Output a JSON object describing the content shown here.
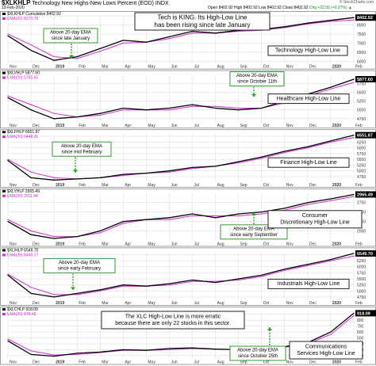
{
  "header": {
    "symbol": "$XLKHLP",
    "description": "Technology New Highs-New Lows Percent (EOD) INDX",
    "date": "13-Feb-2020",
    "source": "© StockCharts.com",
    "ohlc": "Open 8402.92  High 8402.92  Low 8402.92  Close 8402.92",
    "change": "Chg +22.56 (+0.27%) ▲"
  },
  "colors": {
    "price": "#000000",
    "ema": "#d02cd6",
    "annotation_arrow": "#2e9e2e",
    "annotation_border": "#2e9e2e",
    "grid": "#d8d8d8",
    "background": "#ffffff",
    "current_value_tag": "#000000"
  },
  "chart_data": [
    {
      "type": "line",
      "x": [
        "Nov 2018",
        "Dec 2018",
        "Jan 2019",
        "Feb 2019",
        "Mar 2019",
        "Apr 2019",
        "May 2019",
        "Jun 2019",
        "Jul 2019",
        "Aug 2019",
        "Sep 2019",
        "Oct 2019",
        "Nov 2019",
        "Dec 2019",
        "Jan 2020",
        "Feb 2020"
      ],
      "series": [
        {
          "name": "$XLKHLP Cumulative 8402.92",
          "values": [
            7400,
            6600,
            6050,
            6250,
            6700,
            7150,
            7050,
            7350,
            7650,
            7550,
            7700,
            7750,
            7900,
            8100,
            8250,
            8403
          ]
        },
        {
          "name": "EMA(20) 8270.78",
          "values": [
            7500,
            6900,
            6250,
            6150,
            6550,
            7000,
            7050,
            7250,
            7550,
            7550,
            7650,
            7700,
            7850,
            8050,
            8200,
            8271
          ]
        }
      ],
      "ylim": [
        5900,
        8500
      ],
      "yticks": [
        6000,
        6500,
        7000,
        7500,
        8000,
        8500
      ],
      "current_tag": "8402.92",
      "label": "Technology High-Low Line",
      "annotations": [
        {
          "text": "Tech is KING. Its High-Low Line has been rising since late January",
          "type": "note"
        },
        {
          "text": "Above 20-day EMA since late January",
          "type": "arrow-note"
        }
      ]
    },
    {
      "type": "line",
      "x": [
        "Nov 2018",
        "Dec 2018",
        "Jan 2019",
        "Feb 2019",
        "Mar 2019",
        "Apr 2019",
        "May 2019",
        "Jun 2019",
        "Jul 2019",
        "Aug 2019",
        "Sep 2019",
        "Oct 2019",
        "Nov 2019",
        "Dec 2019",
        "Jan 2020",
        "Feb 2020"
      ],
      "series": [
        {
          "name": "$XLVHLP 5877.60",
          "values": [
            5350,
            5000,
            4750,
            4800,
            4900,
            5050,
            5000,
            5050,
            5150,
            5050,
            5000,
            5050,
            5250,
            5450,
            5650,
            5878
          ]
        },
        {
          "name": "EMA(20) 5785.65",
          "values": [
            5400,
            5150,
            4900,
            4800,
            4850,
            5000,
            5000,
            5000,
            5100,
            5100,
            5050,
            5050,
            5200,
            5400,
            5600,
            5786
          ]
        }
      ],
      "ylim": [
        4650,
        6000
      ],
      "yticks": [
        4750,
        5000,
        5250,
        5500,
        5750
      ],
      "current_tag": "5877.60",
      "label": "Healthcare High-Low Line",
      "annotations": [
        {
          "text": "Above 20-day EMA since October 11th",
          "type": "arrow-note"
        }
      ]
    },
    {
      "type": "line",
      "x": [
        "Nov 2018",
        "Dec 2018",
        "Jan 2019",
        "Feb 2019",
        "Mar 2019",
        "Apr 2019",
        "May 2019",
        "Jun 2019",
        "Jul 2019",
        "Aug 2019",
        "Sep 2019",
        "Oct 2019",
        "Nov 2019",
        "Dec 2019",
        "Jan 2020",
        "Feb 2020"
      ],
      "series": [
        {
          "name": "$XLFHLP 6551.87",
          "values": [
            5450,
            4700,
            4600,
            4650,
            4700,
            4850,
            4900,
            5000,
            5150,
            5200,
            5400,
            5600,
            5850,
            6050,
            6300,
            6552
          ]
        },
        {
          "name": "EMA(20) 6448.31",
          "values": [
            5500,
            4950,
            4700,
            4650,
            4700,
            4800,
            4900,
            4950,
            5100,
            5200,
            5350,
            5550,
            5800,
            6000,
            6250,
            6448
          ]
        }
      ],
      "ylim": [
        4550,
        6600
      ],
      "yticks": [
        4750,
        5000,
        5250,
        5500,
        5750,
        6000,
        6250,
        6500
      ],
      "current_tag": "6551.87",
      "label": "Finance High-Low Line",
      "annotations": [
        {
          "text": "Above 20-day EMA since mid February",
          "type": "arrow-note"
        }
      ]
    },
    {
      "type": "line",
      "x": [
        "Nov 2018",
        "Dec 2018",
        "Jan 2019",
        "Feb 2019",
        "Mar 2019",
        "Apr 2019",
        "May 2019",
        "Jun 2019",
        "Jul 2019",
        "Aug 2019",
        "Sep 2019",
        "Oct 2019",
        "Nov 2019",
        "Dec 2019",
        "Jan 2020",
        "Feb 2020"
      ],
      "series": [
        {
          "name": "$XLYHLP 2965.49",
          "values": [
            2250,
            1900,
            1800,
            1850,
            2000,
            2250,
            2300,
            2350,
            2450,
            2350,
            2450,
            2500,
            2600,
            2750,
            2850,
            2965
          ]
        },
        {
          "name": "EMA(20) 2911.44",
          "values": [
            2300,
            2000,
            1850,
            1850,
            1950,
            2200,
            2300,
            2300,
            2400,
            2400,
            2400,
            2450,
            2550,
            2700,
            2800,
            2911
          ]
        }
      ],
      "ylim": [
        1750,
        3000
      ],
      "yticks": [
        2000,
        2250,
        2500,
        2750
      ],
      "current_tag": "2965.49",
      "label": "Consumer Discretionary High-Low Line",
      "annotations": [
        {
          "text": "Above 20-day EMA since early September",
          "type": "arrow-note"
        }
      ]
    },
    {
      "type": "line",
      "x": [
        "Nov 2018",
        "Dec 2018",
        "Jan 2019",
        "Feb 2019",
        "Mar 2019",
        "Apr 2019",
        "May 2019",
        "Jun 2019",
        "Jul 2019",
        "Aug 2019",
        "Sep 2019",
        "Oct 2019",
        "Nov 2019",
        "Dec 2019",
        "Jan 2020",
        "Feb 2020"
      ],
      "series": [
        {
          "name": "$XLIHLP 6549.70",
          "values": [
            5650,
            4900,
            4750,
            4900,
            5050,
            5250,
            5200,
            5300,
            5450,
            5350,
            5500,
            5650,
            5900,
            6100,
            6300,
            6550
          ]
        },
        {
          "name": "EMA(20) 6440.17",
          "values": [
            5700,
            5150,
            4850,
            4850,
            5000,
            5200,
            5200,
            5250,
            5400,
            5400,
            5450,
            5600,
            5850,
            6050,
            6250,
            6440
          ]
        }
      ],
      "ylim": [
        4650,
        6600
      ],
      "yticks": [
        4750,
        5000,
        5250,
        5500,
        5750,
        6000,
        6250,
        6500
      ],
      "current_tag": "6549.70",
      "label": "Industrials High-Low Line",
      "annotations": [
        {
          "text": "Above 20-day EMA since early February",
          "type": "arrow-note"
        }
      ]
    },
    {
      "type": "line",
      "x": [
        "Nov 2018",
        "Dec 2018",
        "Jan 2019",
        "Feb 2019",
        "Mar 2019",
        "Apr 2019",
        "May 2019",
        "Jun 2019",
        "Jul 2019",
        "Aug 2019",
        "Sep 2019",
        "Oct 2019",
        "Nov 2019",
        "Dec 2019",
        "Jan 2020",
        "Feb 2020"
      ],
      "series": [
        {
          "name": "$XLCHLP 918.09",
          "values": [
            450,
            220,
            190,
            240,
            260,
            300,
            290,
            320,
            330,
            310,
            300,
            310,
            350,
            420,
            600,
            918
          ]
        },
        {
          "name": "EMA(20) 878.45",
          "values": [
            480,
            280,
            210,
            220,
            250,
            290,
            290,
            300,
            320,
            310,
            305,
            310,
            340,
            400,
            560,
            878
          ]
        }
      ],
      "ylim": [
        150,
        950
      ],
      "yticks": [
        200,
        300,
        400,
        500,
        600,
        700,
        800,
        900
      ],
      "current_tag": "918.09",
      "label": "Communications Services High-Low Line",
      "annotations": [
        {
          "text": "The XLC High-Low Line is more erratic because there are only 22 stocks in this sector.",
          "type": "note"
        },
        {
          "text": "Above 20-day EMA since October 25th",
          "type": "arrow-note"
        }
      ]
    }
  ],
  "x_axis": {
    "ticks": [
      "Nov",
      "Dec",
      "2019",
      "Feb",
      "Mar",
      "Apr",
      "May",
      "Jun",
      "Jul",
      "Aug",
      "Sep",
      "Oct",
      "Nov",
      "Dec",
      "2020",
      "Feb"
    ]
  }
}
